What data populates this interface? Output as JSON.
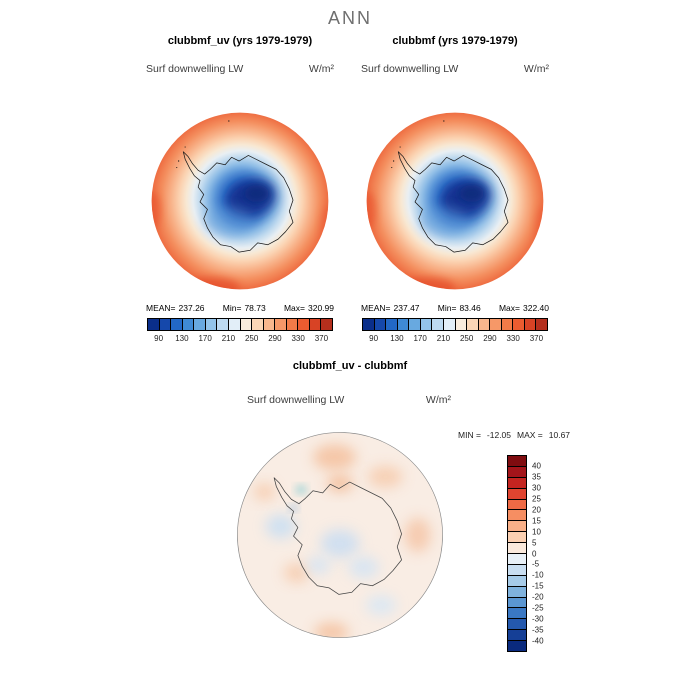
{
  "title": "ANN",
  "panels": [
    {
      "title": "clubbmf_uv (yrs 1979-1979)",
      "field": "Surf downwelling LW",
      "units": "W/m²",
      "stats": {
        "mean_label": "MEAN=",
        "mean": "237.26",
        "min_label": "Min=",
        "min": "78.73",
        "max_label": "Max=",
        "max": "320.99"
      }
    },
    {
      "title": "clubbmf (yrs 1979-1979)",
      "field": "Surf downwelling LW",
      "units": "W/m²",
      "stats": {
        "mean_label": "MEAN=",
        "mean": "237.47",
        "min_label": "Min=",
        "min": "83.46",
        "max_label": "Max=",
        "max": "322.40"
      }
    }
  ],
  "diff": {
    "title": "clubbmf_uv - clubbmf",
    "field": "Surf downwelling LW",
    "units": "W/m²",
    "min_label": "MIN =",
    "min": "-12.05",
    "max_label": "MAX =",
    "max": "10.67"
  },
  "chart_data": [
    {
      "type": "heatmap",
      "subtype": "south-polar-stereographic-contour-map",
      "title": "clubbmf_uv (yrs 1979-1979)",
      "season": "ANN",
      "variable": "Surf downwelling LW",
      "units": "W/m²",
      "region": "Antarctica, south polar projection",
      "stats": {
        "mean": 237.26,
        "min": 78.73,
        "max": 320.99
      },
      "colorbar": {
        "orientation": "horizontal",
        "range": [
          70,
          390
        ],
        "level_step": 20,
        "tick_labels": [
          90,
          130,
          170,
          210,
          250,
          290,
          330,
          370
        ],
        "colors": [
          "#0a2e8a",
          "#1548ab",
          "#2268c6",
          "#3f8ad5",
          "#68a9e0",
          "#93c4ea",
          "#bddaf1",
          "#e2eef8",
          "#f9ecdd",
          "#fbd6b6",
          "#f9b78d",
          "#f69868",
          "#f27b48",
          "#ec5c30",
          "#d84325",
          "#b52f1d"
        ]
      }
    },
    {
      "type": "heatmap",
      "subtype": "south-polar-stereographic-contour-map",
      "title": "clubbmf (yrs 1979-1979)",
      "season": "ANN",
      "variable": "Surf downwelling LW",
      "units": "W/m²",
      "region": "Antarctica, south polar projection",
      "stats": {
        "mean": 237.47,
        "min": 83.46,
        "max": 322.4
      },
      "colorbar": {
        "orientation": "horizontal",
        "range": [
          70,
          390
        ],
        "level_step": 20,
        "tick_labels": [
          90,
          130,
          170,
          210,
          250,
          290,
          330,
          370
        ],
        "colors": [
          "#0a2e8a",
          "#1548ab",
          "#2268c6",
          "#3f8ad5",
          "#68a9e0",
          "#93c4ea",
          "#bddaf1",
          "#e2eef8",
          "#f9ecdd",
          "#fbd6b6",
          "#f9b78d",
          "#f69868",
          "#f27b48",
          "#ec5c30",
          "#d84325",
          "#b52f1d"
        ]
      }
    },
    {
      "type": "heatmap",
      "subtype": "south-polar-stereographic-difference-map",
      "title": "clubbmf_uv - clubbmf",
      "season": "ANN",
      "variable": "Surf downwelling LW",
      "units": "W/m²",
      "region": "Antarctica, south polar projection",
      "stats": {
        "min": -12.05,
        "max": 10.67
      },
      "colorbar": {
        "orientation": "vertical",
        "range": [
          -45,
          45
        ],
        "level_step": 5,
        "tick_labels": [
          40,
          35,
          30,
          25,
          20,
          15,
          10,
          5,
          0,
          -5,
          -10,
          -15,
          -20,
          -25,
          -30,
          -35,
          -40
        ],
        "colors": [
          "#7f0c10",
          "#a3141a",
          "#c32420",
          "#e04430",
          "#ef6a45",
          "#f68e62",
          "#f9b088",
          "#fbd0b2",
          "#fae9dc",
          "#e8f0f7",
          "#c9def1",
          "#a6cbe8",
          "#7fb2dd",
          "#5a96d2",
          "#3a78c4",
          "#2459ae",
          "#153f96",
          "#0a2a7e"
        ]
      }
    }
  ]
}
